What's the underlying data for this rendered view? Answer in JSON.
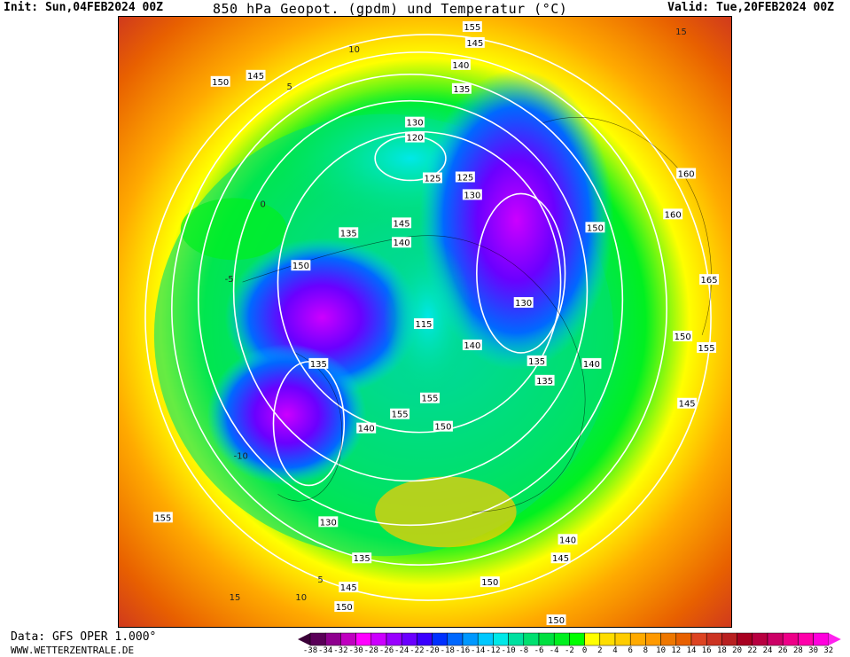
{
  "header": {
    "init": "Init: Sun,04FEB2024 00Z",
    "title": "850 hPa Geopot. (gpdm) und Temperatur (°C)",
    "valid": "Valid: Tue,20FEB2024 00Z"
  },
  "footer": {
    "source": "Data: GFS OPER 1.000°",
    "site": "WWW.WETTERZENTRALE.DE"
  },
  "legend": {
    "ticks": [
      "-38",
      "-34",
      "-32",
      "-30",
      "-28",
      "-26",
      "-24",
      "-22",
      "-20",
      "-18",
      "-16",
      "-14",
      "-12",
      "-10",
      "-8",
      "-6",
      "-4",
      "-2",
      "0",
      "2",
      "4",
      "6",
      "8",
      "10",
      "12",
      "14",
      "16",
      "18",
      "20",
      "22",
      "24",
      "26",
      "28",
      "30",
      "32"
    ],
    "colors": [
      "#5a0058",
      "#8e008e",
      "#c000c0",
      "#ff00ff",
      "#cc00ff",
      "#9900ff",
      "#6a00ff",
      "#3a00ff",
      "#0030ff",
      "#0068ff",
      "#0098ff",
      "#00c8ff",
      "#00e8e8",
      "#00e0a0",
      "#00e070",
      "#00e040",
      "#00f020",
      "#00ff00",
      "#ffff00",
      "#ffdd00",
      "#ffcc00",
      "#ffaa00",
      "#ff9900",
      "#ee7700",
      "#e86000",
      "#dd4422",
      "#cc3322",
      "#b82020",
      "#a80020",
      "#b80040",
      "#cc0066",
      "#ee0088",
      "#ff00aa",
      "#ff00dd"
    ],
    "min_arrow": "#3a0038",
    "max_arrow": "#ff22ee"
  },
  "map": {
    "geopotential_labels": [
      "155",
      "145",
      "140",
      "135",
      "130",
      "125",
      "120",
      "115",
      "135",
      "140",
      "145",
      "150",
      "130",
      "125",
      "135",
      "155",
      "160",
      "160",
      "150",
      "165",
      "150",
      "155",
      "145",
      "140",
      "135",
      "140",
      "150",
      "155",
      "140",
      "130",
      "135",
      "145",
      "150",
      "130",
      "135",
      "140",
      "145",
      "150",
      "155",
      "145",
      "150",
      "150"
    ],
    "temperature_labels": [
      "15",
      "10",
      "5",
      "0",
      "-5",
      "-10",
      "5",
      "10",
      "15"
    ]
  }
}
